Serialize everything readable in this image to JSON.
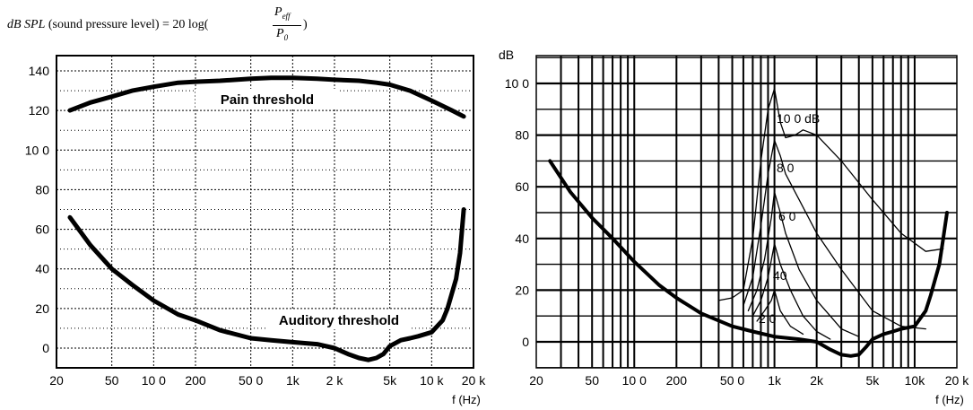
{
  "formula": {
    "lhs": "dB SPL",
    "desc": " (sound pressure level) = 20 log(",
    "num_main": "P",
    "num_sub": "eff",
    "den_main": "P",
    "den_sub": "0",
    "close": ")"
  },
  "chart_data": [
    {
      "type": "line",
      "xscale": "log",
      "xlim": [
        20,
        20000
      ],
      "ylim": [
        -10,
        150
      ],
      "grid": true,
      "x_ticks": [
        20,
        50,
        100,
        200,
        500,
        1000,
        2000,
        5000,
        10000,
        20000
      ],
      "x_tick_labels": [
        "20",
        "50",
        "10 0",
        "200",
        "50 0",
        "1k",
        "2 k",
        "5k",
        "10 k",
        "20 k"
      ],
      "y_ticks": [
        0,
        20,
        40,
        60,
        80,
        100,
        120,
        140
      ],
      "y_tick_labels": [
        "0",
        "20",
        "40",
        "60",
        "80",
        "10 0",
        "120",
        "140"
      ],
      "xlabel": "f (Hz)",
      "ylabel": "",
      "series": [
        {
          "name": "Pain threshold",
          "x": [
            25,
            35,
            50,
            70,
            100,
            150,
            200,
            300,
            500,
            700,
            1000,
            1500,
            2000,
            3000,
            4000,
            5000,
            7000,
            10000,
            14000,
            17000
          ],
          "y": [
            120,
            124,
            127,
            130,
            132,
            134,
            134.5,
            135,
            136,
            136.5,
            136.5,
            136,
            135.5,
            135,
            134,
            133,
            130,
            125,
            120,
            117
          ]
        },
        {
          "name": "Auditory threshold",
          "x": [
            25,
            35,
            50,
            70,
            100,
            150,
            200,
            300,
            500,
            700,
            1000,
            1500,
            2000,
            2500,
            3000,
            3500,
            4000,
            4500,
            5000,
            6000,
            7000,
            8000,
            10000,
            12000,
            13000,
            15000,
            16000,
            17000
          ],
          "y": [
            66,
            52,
            40,
            32,
            24,
            17,
            14,
            9,
            5,
            4,
            3,
            2,
            0,
            -3,
            -5,
            -6,
            -5,
            -3,
            1,
            4,
            5,
            6,
            8,
            14,
            20,
            35,
            48,
            70
          ]
        }
      ]
    },
    {
      "type": "line",
      "xscale": "log",
      "xlim": [
        20,
        20000
      ],
      "ylim": [
        -10,
        110
      ],
      "grid": true,
      "x_ticks": [
        20,
        50,
        100,
        200,
        500,
        1000,
        2000,
        5000,
        10000,
        20000
      ],
      "x_tick_labels": [
        "20",
        "50",
        "10 0",
        "200",
        "50 0",
        "1k",
        "2k",
        "5k",
        "10k",
        "20 k"
      ],
      "y_ticks": [
        0,
        20,
        40,
        60,
        80,
        100
      ],
      "y_tick_labels": [
        "0",
        "20",
        "40",
        "60",
        "80",
        "10 0"
      ],
      "xlabel": "f (Hz)",
      "ylabel": "dB",
      "annotations": [
        "10 0 dB",
        "8 0",
        "6 0",
        "40",
        "2 0"
      ],
      "series": [
        {
          "name": "",
          "x": [
            25,
            35,
            50,
            70,
            100,
            150,
            200,
            300,
            500,
            700,
            1000,
            1500,
            2000,
            2500,
            3000,
            3500,
            4000,
            4500,
            5000,
            6000,
            7000,
            8000,
            10000,
            12000,
            13000,
            15000,
            16000,
            17000
          ],
          "y": [
            70,
            58,
            48,
            40,
            31,
            22,
            17,
            11,
            6,
            4,
            2,
            1,
            0,
            -3,
            -5,
            -5.5,
            -5,
            -2,
            1,
            3,
            4,
            5,
            6,
            12,
            18,
            30,
            40,
            50
          ]
        },
        {
          "name": "",
          "x": [
            400,
            500,
            600,
            700,
            800,
            900,
            1000,
            1100,
            1200,
            1400,
            1600,
            2000,
            3000,
            5000,
            8000,
            12000,
            16000
          ],
          "y": [
            16,
            17,
            20,
            40,
            70,
            90,
            98,
            85,
            79,
            80,
            82,
            80,
            70,
            55,
            42,
            35,
            36
          ]
        },
        {
          "name": "",
          "x": [
            600,
            700,
            800,
            900,
            1000,
            1100,
            1200,
            1500,
            2000,
            3000,
            5000,
            8000,
            12000
          ],
          "y": [
            14,
            25,
            45,
            65,
            78,
            72,
            65,
            55,
            42,
            28,
            12,
            6,
            5
          ]
        },
        {
          "name": "",
          "x": [
            650,
            750,
            850,
            950,
            1000,
            1100,
            1200,
            1500,
            2000,
            2500,
            3000,
            4000
          ],
          "y": [
            12,
            20,
            32,
            48,
            58,
            50,
            42,
            28,
            16,
            10,
            5,
            2
          ]
        },
        {
          "name": "",
          "x": [
            700,
            800,
            900,
            1000,
            1100,
            1300,
            1600,
            2000,
            2500
          ],
          "y": [
            10,
            16,
            25,
            38,
            30,
            20,
            10,
            4,
            1
          ]
        },
        {
          "name": "",
          "x": [
            750,
            850,
            950,
            1000,
            1100,
            1300,
            1600
          ],
          "y": [
            8,
            12,
            16,
            20,
            12,
            6,
            3
          ]
        }
      ]
    }
  ]
}
